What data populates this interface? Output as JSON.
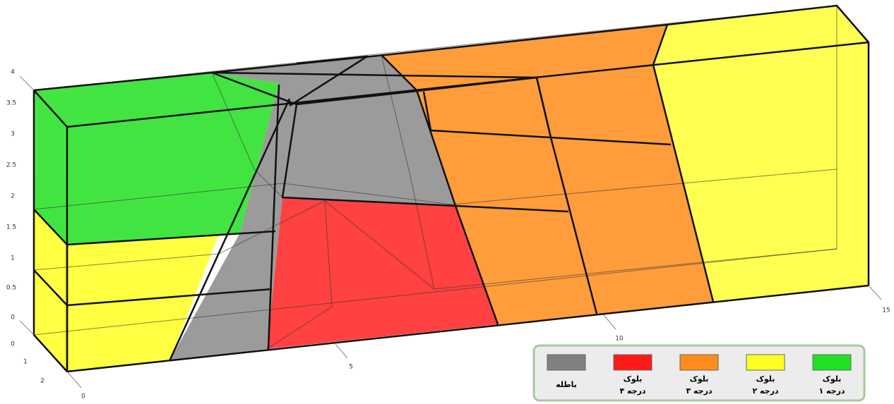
{
  "axes": {
    "z_ticks": [
      "4",
      "3.5",
      "3",
      "2.5",
      "2",
      "1.5",
      "1",
      "0.5",
      "0",
      "0"
    ],
    "y_ticks": [
      "1",
      "2",
      "0"
    ],
    "x_ticks": [
      "5",
      "10",
      "15"
    ]
  },
  "legend": [
    {
      "line1": "باطله"
    },
    {
      "line1": "بلوک",
      "line2": "درجه ۴"
    },
    {
      "line1": "بلوک",
      "line2": "درجه ۳"
    },
    {
      "line1": "بلوک",
      "line2": "درجه ۲"
    },
    {
      "line1": "بلوک",
      "line2": "درجه ۱"
    }
  ]
}
